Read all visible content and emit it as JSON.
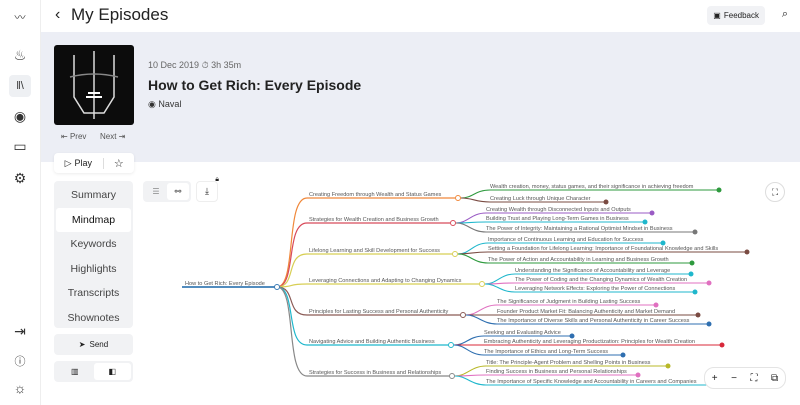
{
  "header": {
    "title": "My Episodes",
    "feedback": "Feedback"
  },
  "rail": {
    "icons": [
      "logo-icon",
      "flame-icon",
      "library-icon",
      "podcast-icon",
      "card-icon",
      "gear-icon",
      "logout-icon",
      "info-icon",
      "sun-icon"
    ]
  },
  "episode": {
    "date": "10 Dec 2019",
    "duration": "3h 35m",
    "title": "How to Get Rich: Every Episode",
    "author": "Naval",
    "prev": "Prev",
    "next": "Next",
    "play": "Play"
  },
  "tabs": [
    {
      "label": "Summary"
    },
    {
      "label": "Mindmap",
      "active": true
    },
    {
      "label": "Keywords"
    },
    {
      "label": "Highlights"
    },
    {
      "label": "Transcripts"
    },
    {
      "label": "Shownotes"
    }
  ],
  "send": "Send",
  "mindmap": {
    "root": "How to Get Rich: Every Episode",
    "root_color": "#3a7bb5",
    "branches": [
      {
        "label": "Creating Freedom through Wealth and Status Games",
        "color": "#f0883a",
        "children": [
          {
            "label": "Wealth creation, money, status games, and their significance in achieving freedom",
            "color": "#2e9a3e"
          },
          {
            "label": "Creating Luck through Unique Character",
            "color": "#7a4b42"
          }
        ]
      },
      {
        "label": "Strategies for Wealth Creation and Business Growth",
        "color": "#d84a5a",
        "children": [
          {
            "label": "Creating Wealth through Disconnected Inputs and Outputs",
            "color": "#9a5bc4"
          },
          {
            "label": "Building Trust and Playing Long-Term Games in Business",
            "color": "#1fb7cc"
          },
          {
            "label": "The Power of Integrity: Maintaining a Rational Optimist Mindset in Business",
            "color": "#777777"
          }
        ]
      },
      {
        "label": "Lifelong Learning and Skill Development for Success",
        "color": "#d8cf55",
        "children": [
          {
            "label": "Importance of Continuous Learning and Education for Success",
            "color": "#1fb7cc"
          },
          {
            "label": "Setting a Foundation for Lifelong Learning: Importance of Foundational Knowledge and Skills",
            "color": "#7a4b42"
          },
          {
            "label": "The Power of Action and Accountability in Learning and Business Growth",
            "color": "#2e9a3e"
          }
        ]
      },
      {
        "label": "Leveraging Connections and Adapting to Changing Dynamics",
        "color": "#d8cf55",
        "children": [
          {
            "label": "Understanding the Significance of Accountability and Leverage",
            "color": "#1fb7cc"
          },
          {
            "label": "The Power of Coding and the Changing Dynamics of Wealth Creation",
            "color": "#e070c0"
          },
          {
            "label": "Leveraging Network Effects: Exploring the Power of Connections",
            "color": "#1fb7cc"
          }
        ]
      },
      {
        "label": "Principles for Lasting Success and Personal Authenticity",
        "color": "#8a5a55",
        "children": [
          {
            "label": "The Significance of Judgment in Building Lasting Success",
            "color": "#e070c0"
          },
          {
            "label": "Founder Product Market Fit: Balancing Authenticity and Market Demand",
            "color": "#7a4b42"
          },
          {
            "label": "The Importance of Diverse Skills and Personal Authenticity in Career Success",
            "color": "#2f6fb0"
          }
        ]
      },
      {
        "label": "Navigating Advice and Building Authentic Business",
        "color": "#1fb7cc",
        "children": [
          {
            "label": "Seeking and Evaluating Advice",
            "color": "#2f6fb0"
          },
          {
            "label": "Embracing Authenticity and Leveraging Productization: Principles for Wealth Creation",
            "color": "#d8283a"
          },
          {
            "label": "The Importance of Ethics and Long-Term Success",
            "color": "#2f6fb0"
          }
        ]
      },
      {
        "label": "Strategies for Success in Business and Relationships",
        "color": "#888888",
        "children": [
          {
            "label": "Title: The Principle-Agent Problem and Shelling Points in Business",
            "color": "#b8b828"
          },
          {
            "label": "Finding Success in Business and Personal Relationships",
            "color": "#e070c0"
          },
          {
            "label": "The Importance of Specific Knowledge and Accountability in Careers and Companies",
            "color": "#1fb7cc"
          }
        ]
      }
    ]
  },
  "zoom_controls": {
    "plus": "+",
    "minus": "−"
  }
}
